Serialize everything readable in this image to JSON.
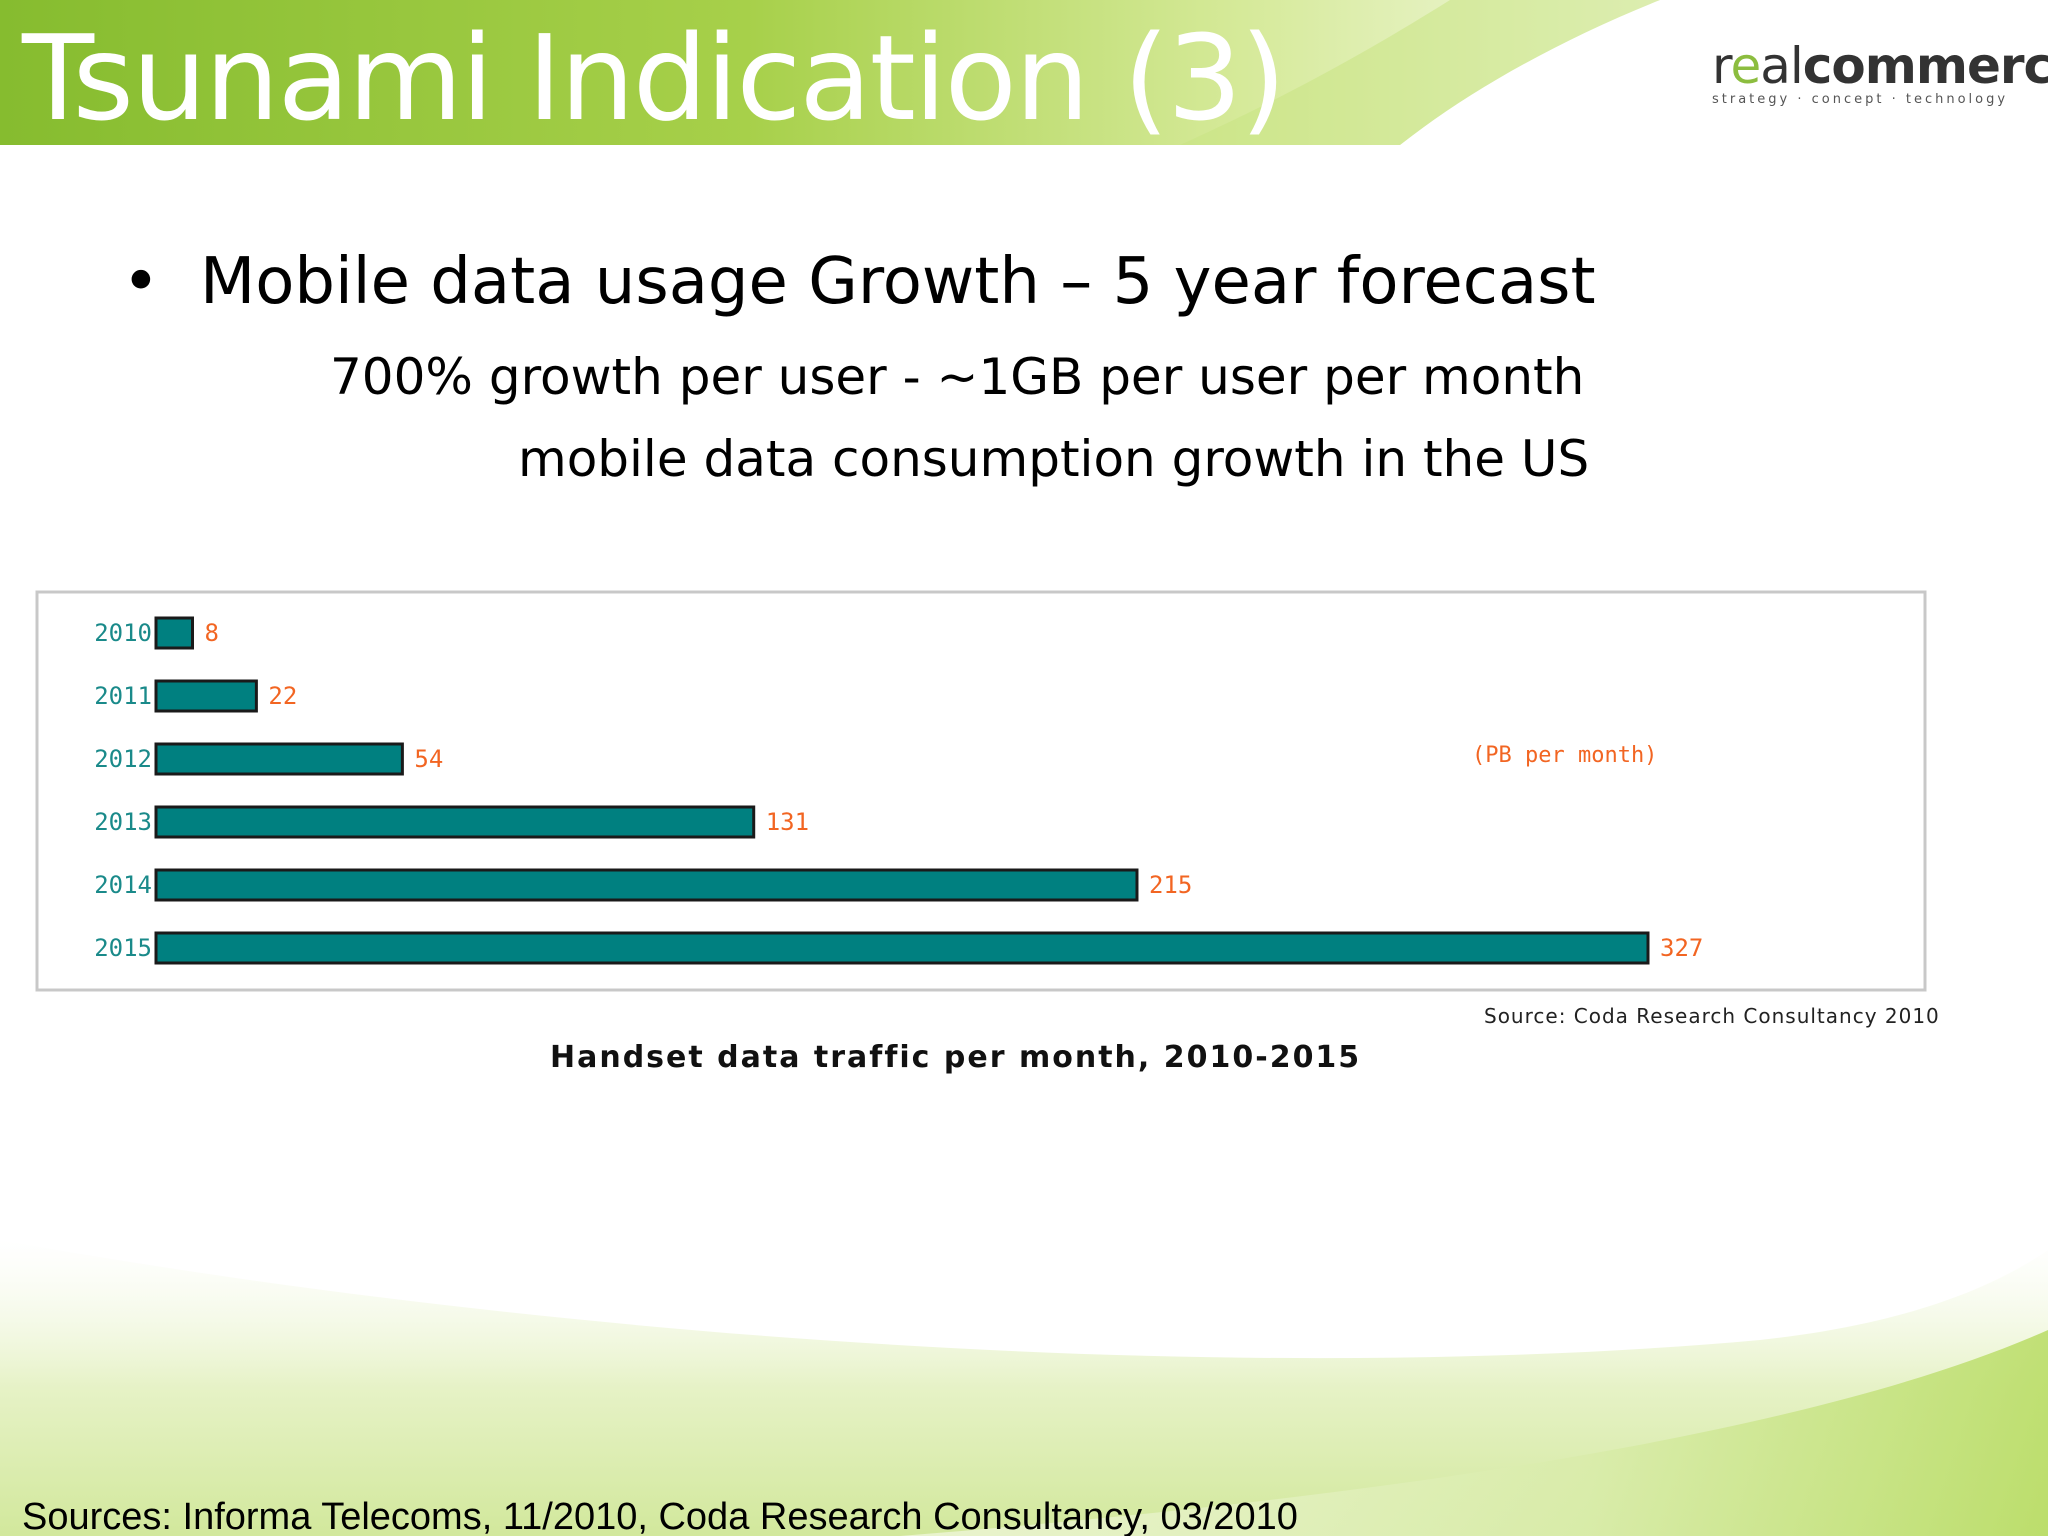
{
  "slide": {
    "title": "Tsunami Indication (3)",
    "bullet": "Mobile data usage Growth – 5 year forecast",
    "sub_line_1": "700% growth per user  - ~1GB per user per month",
    "sub_line_2": "mobile data consumption growth in the US",
    "footer": "Sources: Informa Telecoms, 11/2010, Coda Research Consultancy, 03/2010"
  },
  "logo": {
    "name_r": "r",
    "name_e": "e",
    "name_al": "al",
    "name_commerce": "commerce",
    "tagline": "strategy · concept · technology"
  },
  "colors": {
    "header_green": "#9fcb3c",
    "light_green": "#e3f0c0",
    "bar_fill": "#008080",
    "bar_outline": "#1a1a1a",
    "value_label": "#f26522",
    "year_label": "#1a8a8a"
  },
  "chart_data": {
    "type": "bar",
    "orientation": "horizontal",
    "categories": [
      "2010",
      "2011",
      "2012",
      "2013",
      "2014",
      "2015"
    ],
    "values": [
      8,
      22,
      54,
      131,
      215,
      327
    ],
    "value_labels": [
      "8",
      "22",
      "54",
      "131",
      "215",
      "327"
    ],
    "unit_label": "(PB per month)",
    "title": "Handset data traffic per month, 2010-2015",
    "source": "Source: Coda Research Consultancy 2010",
    "xlim": [
      0,
      327
    ],
    "grid": false
  }
}
